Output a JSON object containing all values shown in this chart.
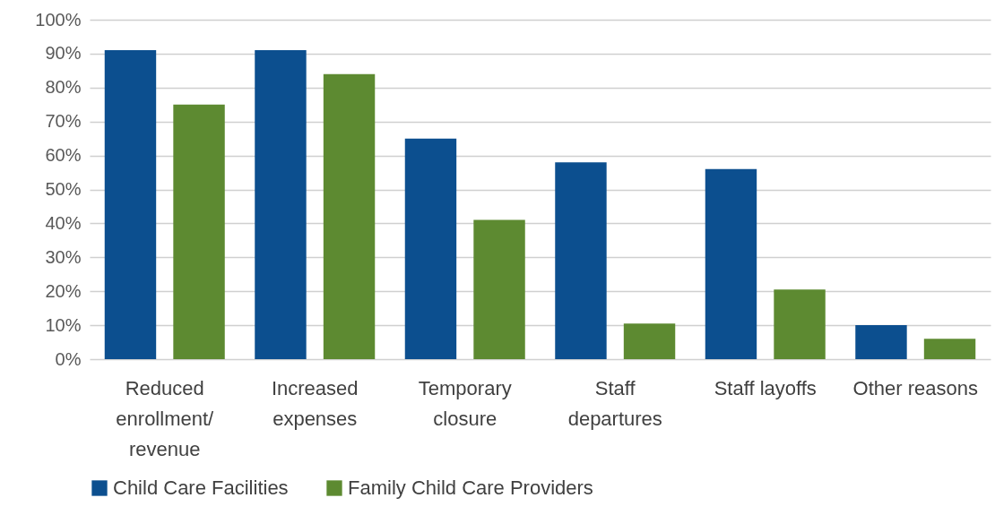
{
  "chart_data": {
    "type": "bar",
    "categories": [
      "Reduced enrollment/ revenue",
      "Increased expenses",
      "Temporary closure",
      "Staff departures",
      "Staff layoffs",
      "Other reasons"
    ],
    "series": [
      {
        "name": "Child Care Facilities",
        "color": "#0c4f8f",
        "values": [
          91,
          91,
          65,
          58,
          56,
          10
        ]
      },
      {
        "name": "Family Child Care Providers",
        "color": "#5d8a31",
        "values": [
          75,
          84,
          41,
          10.5,
          20.5,
          6
        ]
      }
    ],
    "ylim": [
      0,
      100
    ],
    "yticks": [
      {
        "value": 0,
        "label": "0%"
      },
      {
        "value": 10,
        "label": "10%"
      },
      {
        "value": 20,
        "label": "20%"
      },
      {
        "value": 30,
        "label": "30%"
      },
      {
        "value": 40,
        "label": "40%"
      },
      {
        "value": 50,
        "label": "50%"
      },
      {
        "value": 60,
        "label": "60%"
      },
      {
        "value": 70,
        "label": "70%"
      },
      {
        "value": 80,
        "label": "80%"
      },
      {
        "value": 90,
        "label": "90%"
      },
      {
        "value": 100,
        "label": "100%"
      }
    ],
    "grid": "y",
    "legend": "bottom"
  }
}
